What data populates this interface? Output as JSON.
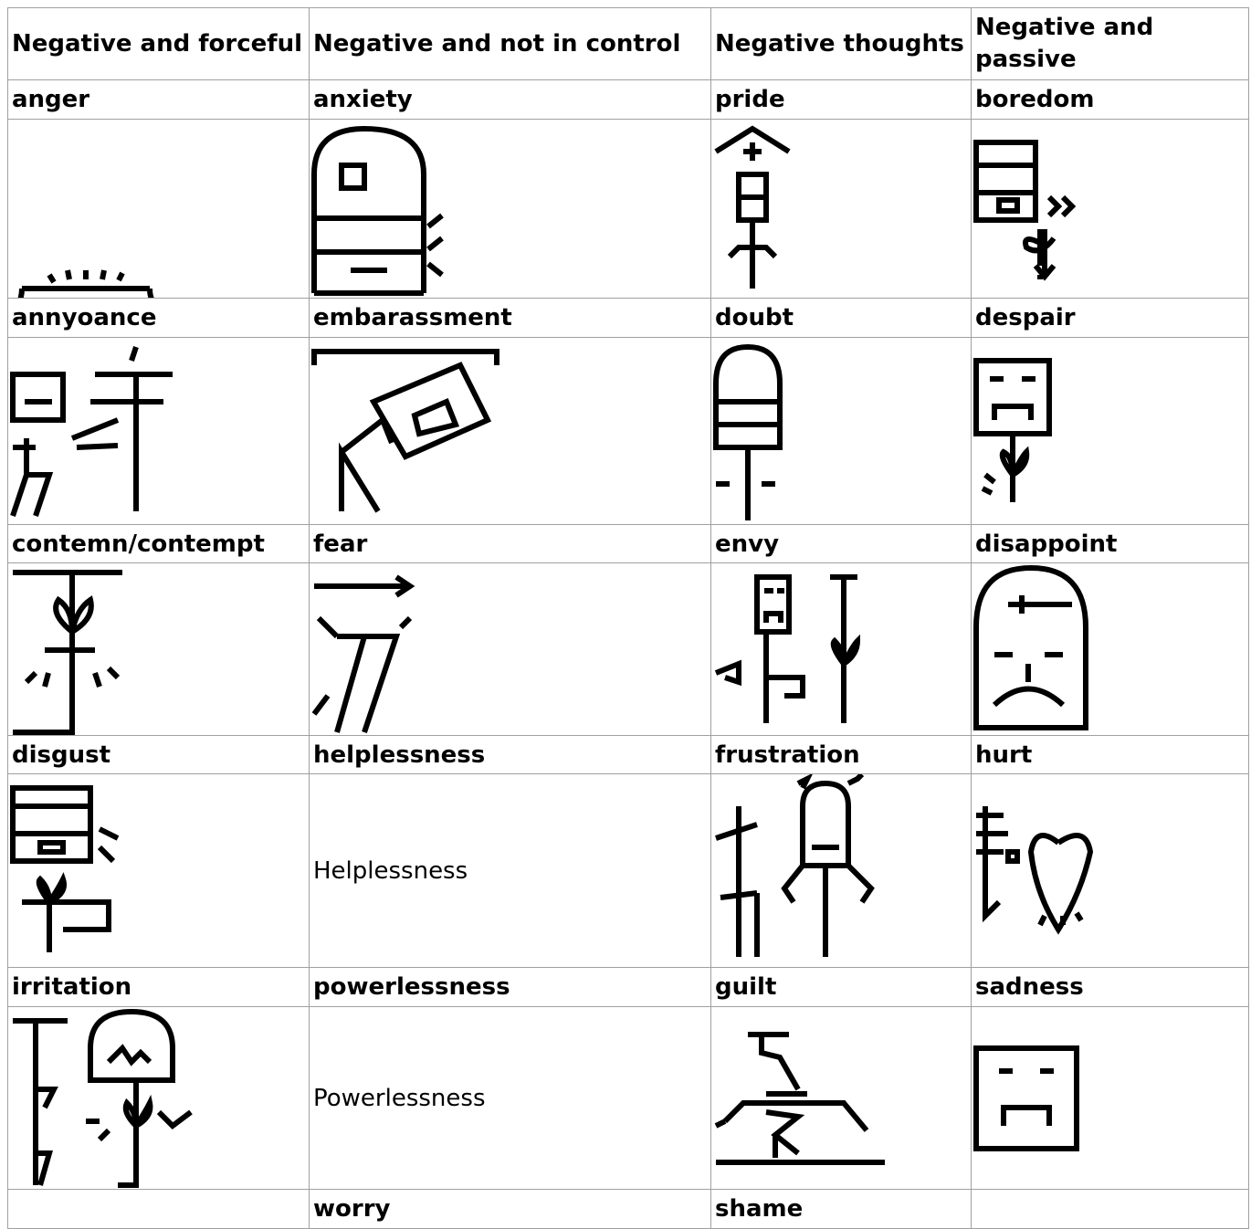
{
  "table": {
    "header": [
      "Negative and forceful",
      "Negative and not in control",
      "Negative thoughts",
      "Negative and passive"
    ],
    "rows": [
      {
        "labels": [
          "anger",
          "anxiety",
          "pride",
          "boredom"
        ],
        "cells": [
          null,
          null,
          null,
          null
        ]
      },
      {
        "labels": [
          "annyoance",
          "embarassment",
          "doubt",
          "despair"
        ],
        "cells": [
          null,
          null,
          null,
          null
        ]
      },
      {
        "labels": [
          "contemn/contempt",
          "fear",
          "envy",
          "disappoint"
        ],
        "cells": [
          null,
          null,
          null,
          null
        ]
      },
      {
        "labels": [
          "disgust",
          "helplessness",
          "frustration",
          "hurt"
        ],
        "cells": [
          null,
          "Helplessness",
          null,
          null
        ]
      },
      {
        "labels": [
          "irritation",
          "powerlessness",
          "guilt",
          "sadness"
        ],
        "cells": [
          null,
          "Powerlessness",
          null,
          null
        ]
      },
      {
        "labels": [
          null,
          "worry",
          "shame",
          null
        ]
      }
    ]
  }
}
